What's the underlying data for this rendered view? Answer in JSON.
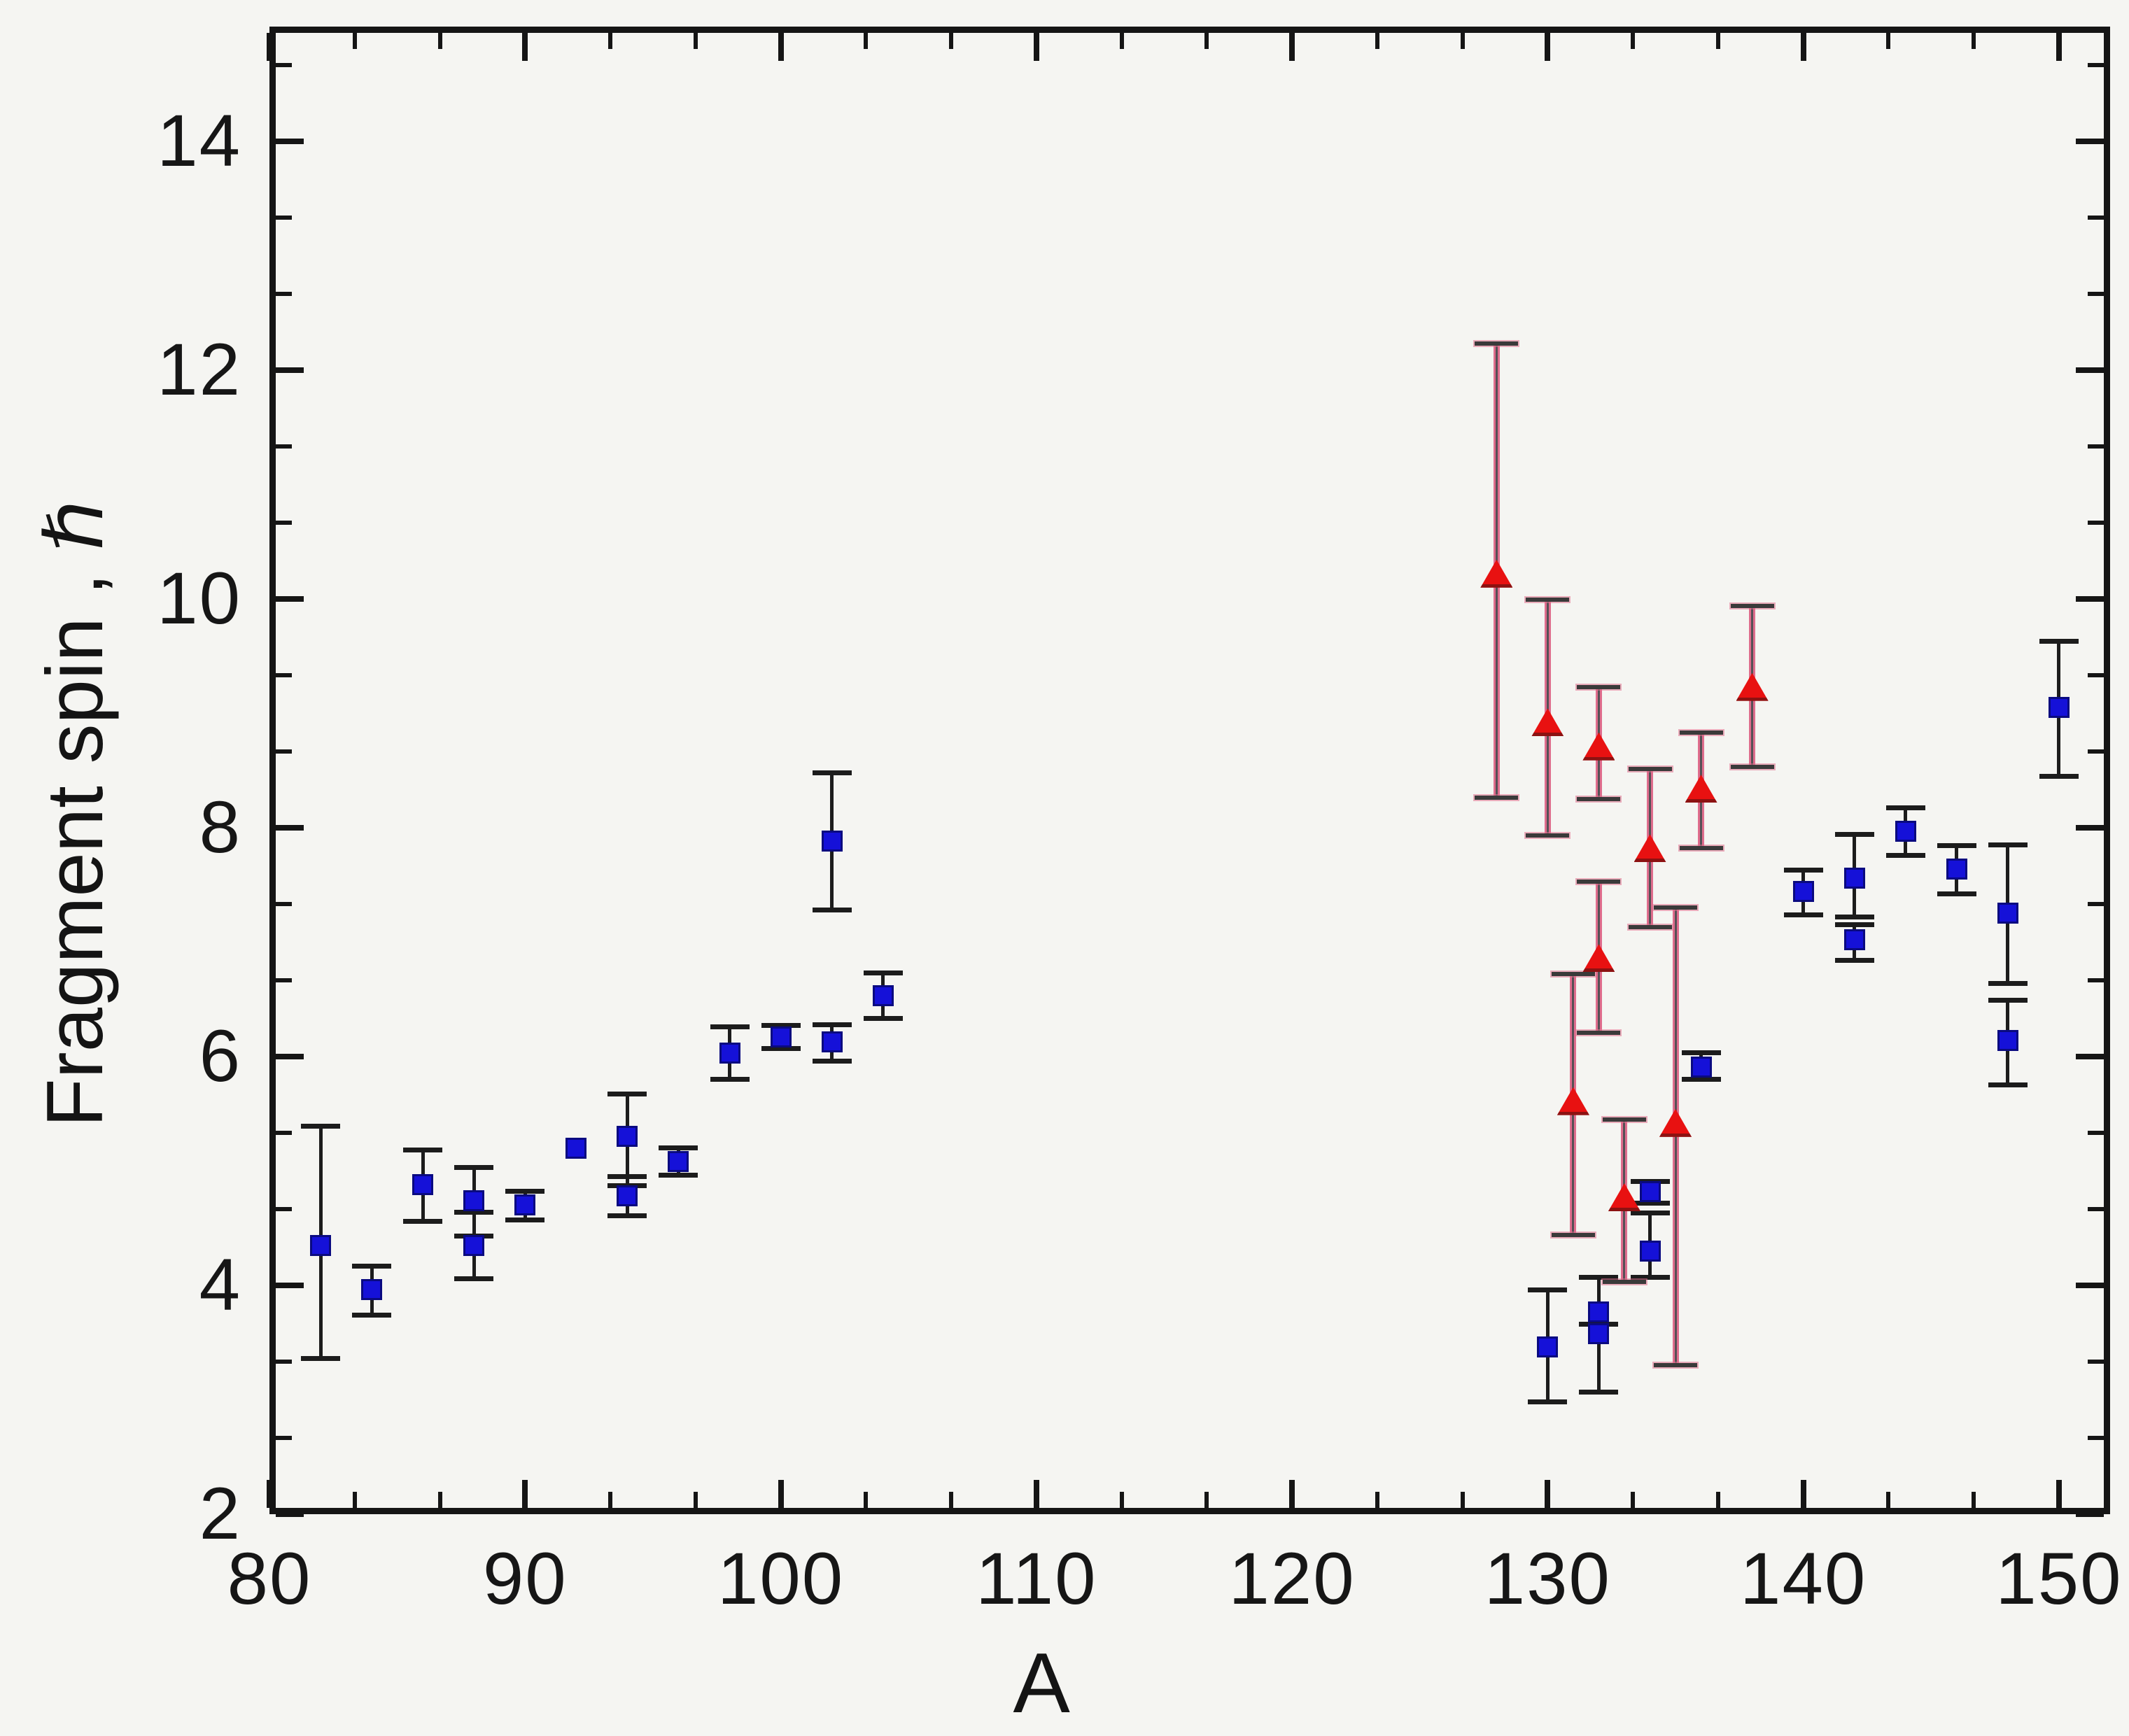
{
  "figure": {
    "background": "#f5f5f2",
    "frame_color": "#151515"
  },
  "chart_data": {
    "type": "scatter",
    "title": "",
    "xlabel": "A",
    "ylabel_text": "Fragment spin ,",
    "ylabel_unit": "ℏ",
    "xlim": [
      80,
      152
    ],
    "ylim": [
      2,
      15
    ],
    "x_major_ticks": [
      80,
      90,
      100,
      110,
      120,
      130,
      140,
      150
    ],
    "y_major_ticks": [
      2,
      4,
      6,
      8,
      10,
      12,
      14
    ],
    "x_minor_per_major": 2,
    "y_minor_per_major": 2,
    "grid": false,
    "legend": null,
    "series": [
      {
        "name": "blue-squares",
        "marker": "square",
        "marker_color": "#1511d8",
        "error_bar_color": "#1c1c1c",
        "points": [
          {
            "a": 82,
            "spin": 4.35,
            "hi": 5.39,
            "lo": 3.36
          },
          {
            "a": 84,
            "spin": 3.96,
            "hi": 4.17,
            "lo": 3.74
          },
          {
            "a": 86,
            "spin": 4.88,
            "hi": 5.18,
            "lo": 4.56
          },
          {
            "a": 88,
            "spin": 4.74,
            "hi": 5.03,
            "lo": 4.43
          },
          {
            "a": 88,
            "spin": 4.35,
            "hi": 4.64,
            "lo": 4.06
          },
          {
            "a": 90,
            "spin": 4.7,
            "hi": 4.82,
            "lo": 4.57
          },
          {
            "a": 92,
            "spin": 5.2,
            "hi": null,
            "lo": null
          },
          {
            "a": 94,
            "spin": 5.3,
            "hi": 5.67,
            "lo": 4.87
          },
          {
            "a": 94,
            "spin": 4.78,
            "hi": 4.95,
            "lo": 4.61
          },
          {
            "a": 96,
            "spin": 5.08,
            "hi": 5.2,
            "lo": 4.96
          },
          {
            "a": 98,
            "spin": 6.03,
            "hi": 6.26,
            "lo": 5.8
          },
          {
            "a": 100,
            "spin": 6.17,
            "hi": 6.27,
            "lo": 6.07
          },
          {
            "a": 102,
            "spin": 7.88,
            "hi": 8.48,
            "lo": 7.28
          },
          {
            "a": 102,
            "spin": 6.13,
            "hi": 6.28,
            "lo": 5.96
          },
          {
            "a": 104,
            "spin": 6.53,
            "hi": 6.73,
            "lo": 6.33
          },
          {
            "a": 130,
            "spin": 3.46,
            "hi": 3.96,
            "lo": 2.98
          },
          {
            "a": 132,
            "spin": 3.77,
            "hi": 4.07,
            "lo": 3.66
          },
          {
            "a": 132,
            "spin": 3.58,
            "hi": 3.66,
            "lo": 3.07
          },
          {
            "a": 134,
            "spin": 4.82,
            "hi": 4.91,
            "lo": 4.72
          },
          {
            "a": 134,
            "spin": 4.3,
            "hi": 4.63,
            "lo": 4.07
          },
          {
            "a": 136,
            "spin": 5.91,
            "hi": 6.03,
            "lo": 5.8
          },
          {
            "a": 140,
            "spin": 7.44,
            "hi": 7.63,
            "lo": 7.24
          },
          {
            "a": 142,
            "spin": 7.56,
            "hi": 7.94,
            "lo": 7.22
          },
          {
            "a": 142,
            "spin": 7.02,
            "hi": 7.15,
            "lo": 6.84
          },
          {
            "a": 144,
            "spin": 7.97,
            "hi": 8.17,
            "lo": 7.76
          },
          {
            "a": 146,
            "spin": 7.64,
            "hi": 7.84,
            "lo": 7.42
          },
          {
            "a": 148,
            "spin": 7.25,
            "hi": 7.85,
            "lo": 6.64
          },
          {
            "a": 148,
            "spin": 6.14,
            "hi": 6.49,
            "lo": 5.75
          },
          {
            "a": 150,
            "spin": 9.05,
            "hi": 9.63,
            "lo": 8.45
          }
        ]
      },
      {
        "name": "red-triangles",
        "marker": "triangle",
        "marker_color": "#e81111",
        "error_bar_color": "#df6d8d",
        "error_bar_core_color": "#565056",
        "points": [
          {
            "a": 128,
            "spin": 10.22,
            "hi": 12.23,
            "lo": 8.26
          },
          {
            "a": 130,
            "spin": 8.92,
            "hi": 9.99,
            "lo": 7.93
          },
          {
            "a": 131,
            "spin": 5.61,
            "hi": 6.72,
            "lo": 4.44
          },
          {
            "a": 132,
            "spin": 8.71,
            "hi": 9.23,
            "lo": 8.25
          },
          {
            "a": 132,
            "spin": 6.86,
            "hi": 7.53,
            "lo": 6.21
          },
          {
            "a": 133,
            "spin": 4.77,
            "hi": 5.45,
            "lo": 4.03
          },
          {
            "a": 134,
            "spin": 7.82,
            "hi": 8.51,
            "lo": 7.13
          },
          {
            "a": 135,
            "spin": 5.42,
            "hi": 7.3,
            "lo": 3.3
          },
          {
            "a": 136,
            "spin": 8.34,
            "hi": 8.83,
            "lo": 7.82
          },
          {
            "a": 138,
            "spin": 9.23,
            "hi": 9.94,
            "lo": 8.53
          }
        ]
      }
    ]
  }
}
